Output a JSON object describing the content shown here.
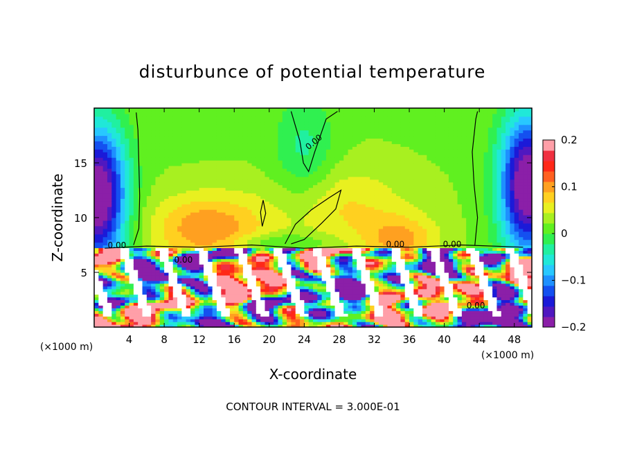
{
  "chart_data": {
    "type": "heatmap",
    "title": "disturbunce of potential temperature",
    "xlabel": "X-coordinate",
    "ylabel": "Z-coordinate",
    "x_unit": "(×1000 m)",
    "z_unit": "(×1000 m)",
    "xlim": [
      0,
      50
    ],
    "ylim": [
      0,
      20
    ],
    "x_ticks": [
      4,
      8,
      12,
      16,
      20,
      24,
      28,
      32,
      36,
      40,
      44,
      48
    ],
    "y_ticks": [
      5,
      10,
      15
    ],
    "colorbar": {
      "range": [
        -0.2,
        0.2
      ],
      "tick_values": [
        0.2,
        0.1,
        0,
        -0.1,
        -0.2
      ],
      "tick_labels": [
        "0.2",
        "0.1",
        "0",
        "−0.1",
        "−0.2"
      ],
      "colors": [
        "#8b1fa8",
        "#5018c0",
        "#1b1ad8",
        "#1450f0",
        "#1e90ff",
        "#28c8ff",
        "#20e8d8",
        "#20f0a0",
        "#30f050",
        "#60f020",
        "#a8f020",
        "#e8f020",
        "#ffd020",
        "#ffa020",
        "#ff6020",
        "#ff2818",
        "#f03040",
        "#ff9fa8"
      ]
    },
    "contour_labels": [
      "0.00",
      "0.00",
      "0.00",
      "0.00",
      "0.00",
      "0.00"
    ],
    "footer": "CONTOUR INTERVAL = 3.000E-01"
  }
}
